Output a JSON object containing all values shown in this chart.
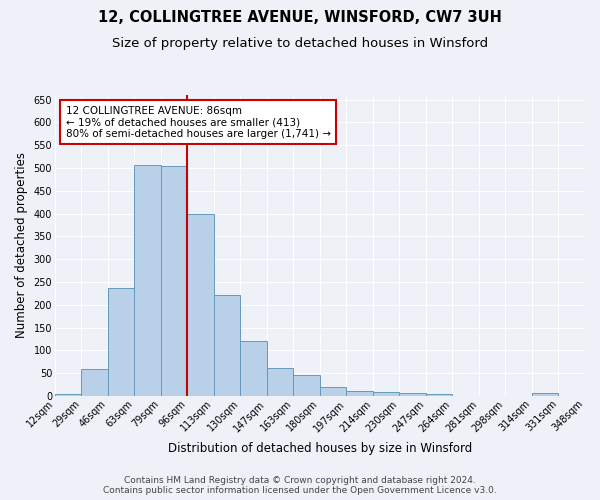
{
  "title": "12, COLLINGTREE AVENUE, WINSFORD, CW7 3UH",
  "subtitle": "Size of property relative to detached houses in Winsford",
  "xlabel": "Distribution of detached houses by size in Winsford",
  "ylabel": "Number of detached properties",
  "bar_labels": [
    "12sqm",
    "29sqm",
    "46sqm",
    "63sqm",
    "79sqm",
    "96sqm",
    "113sqm",
    "130sqm",
    "147sqm",
    "163sqm",
    "180sqm",
    "197sqm",
    "214sqm",
    "230sqm",
    "247sqm",
    "264sqm",
    "281sqm",
    "298sqm",
    "314sqm",
    "331sqm",
    "348sqm"
  ],
  "bar_values": [
    5,
    60,
    237,
    507,
    505,
    398,
    222,
    120,
    62,
    47,
    20,
    11,
    8,
    6,
    5,
    0,
    0,
    0,
    6,
    0
  ],
  "vline_x": 5,
  "vline_color": "#cc0000",
  "annotation_text": "12 COLLINGTREE AVENUE: 86sqm\n← 19% of detached houses are smaller (413)\n80% of semi-detached houses are larger (1,741) →",
  "annotation_box_color": "#ffffff",
  "annotation_box_edge_color": "#cc0000",
  "bar_color": "#b8d0e8",
  "bar_edge_color": "#6699bb",
  "ylim": [
    0,
    660
  ],
  "yticks": [
    0,
    50,
    100,
    150,
    200,
    250,
    300,
    350,
    400,
    450,
    500,
    550,
    600,
    650
  ],
  "footer_line1": "Contains HM Land Registry data © Crown copyright and database right 2024.",
  "footer_line2": "Contains public sector information licensed under the Open Government Licence v3.0.",
  "background_color": "#eef2f8",
  "grid_color": "#ffffff",
  "title_fontsize": 10.5,
  "subtitle_fontsize": 9.5,
  "axis_label_fontsize": 8.5,
  "tick_fontsize": 7,
  "annot_fontsize": 7.5,
  "footer_fontsize": 6.5
}
